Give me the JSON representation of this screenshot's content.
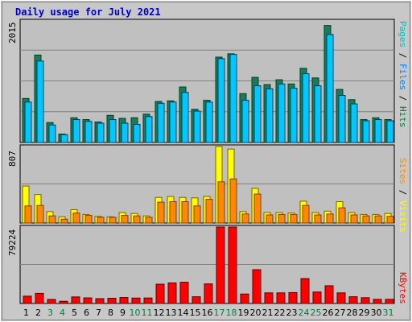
{
  "title": "Daily usage for July 2021",
  "colors": {
    "background": "#c8c8c8",
    "plot_bg": "#c0c0c0",
    "pages": "#00c0c0",
    "files": "#0080ff",
    "hits": "#008040",
    "hits_bar": "#1a7a5c",
    "files_bar": "#00c8ff",
    "visits": "#ffff00",
    "sites": "#ff8800",
    "kbytes": "#ff0000",
    "weekend": "#008040",
    "weekday": "#000000"
  },
  "chart_data": [
    {
      "type": "bar",
      "title": "Daily usage for July 2021",
      "ymax_label": "2015",
      "ylim": [
        0,
        2015
      ],
      "x": [
        "1",
        "2",
        "3",
        "4",
        "5",
        "6",
        "7",
        "8",
        "9",
        "10",
        "11",
        "12",
        "13",
        "14",
        "15",
        "16",
        "17",
        "18",
        "19",
        "20",
        "21",
        "22",
        "23",
        "24",
        "25",
        "26",
        "27",
        "28",
        "29",
        "30",
        "31"
      ],
      "weekend_days": [
        "3",
        "4",
        "10",
        "11",
        "17",
        "18",
        "24",
        "25",
        "31"
      ],
      "legend": [
        {
          "text": "Pages",
          "color": "#00c0c0"
        },
        {
          "text": " / ",
          "color": "#000000"
        },
        {
          "text": "Files",
          "color": "#0080ff"
        },
        {
          "text": " / ",
          "color": "#000000"
        },
        {
          "text": "Hits",
          "color": "#008040"
        }
      ],
      "series": [
        {
          "name": "Hits",
          "values": [
            730,
            1450,
            330,
            140,
            410,
            380,
            340,
            450,
            400,
            410,
            470,
            680,
            690,
            920,
            550,
            700,
            1415,
            1470,
            810,
            1080,
            960,
            1040,
            970,
            1230,
            1070,
            1940,
            880,
            710,
            380,
            410,
            380
          ]
        },
        {
          "name": "Files",
          "values": [
            670,
            1350,
            290,
            130,
            380,
            350,
            320,
            380,
            320,
            300,
            430,
            650,
            670,
            830,
            520,
            670,
            1390,
            1460,
            700,
            940,
            890,
            970,
            900,
            1140,
            940,
            1790,
            780,
            640,
            360,
            380,
            360
          ]
        }
      ]
    },
    {
      "type": "bar",
      "ymax_label": "807",
      "ylim": [
        0,
        807
      ],
      "legend": [
        {
          "text": "Sites",
          "color": "#ff8800"
        },
        {
          "text": " / ",
          "color": "#000000"
        },
        {
          "text": "Visits",
          "color": "#ffff00"
        }
      ],
      "series": [
        {
          "name": "Visits",
          "values": [
            390,
            300,
            120,
            65,
            140,
            90,
            70,
            65,
            110,
            100,
            75,
            270,
            280,
            270,
            265,
            280,
            807,
            780,
            120,
            365,
            110,
            110,
            105,
            230,
            110,
            125,
            225,
            110,
            90,
            90,
            100
          ]
        },
        {
          "name": "Sites",
          "values": [
            180,
            185,
            75,
            40,
            105,
            80,
            60,
            60,
            80,
            75,
            60,
            220,
            225,
            225,
            180,
            250,
            435,
            465,
            95,
            305,
            85,
            90,
            90,
            185,
            85,
            95,
            160,
            85,
            75,
            75,
            70
          ]
        }
      ]
    },
    {
      "type": "bar",
      "ymax_label": "79224",
      "ylim": [
        0,
        79224
      ],
      "legend": [
        {
          "text": "KBytes",
          "color": "#ff0000"
        }
      ],
      "series": [
        {
          "name": "KBytes",
          "values": [
            7600,
            10500,
            4200,
            2300,
            6800,
            5800,
            5000,
            5400,
            6200,
            5600,
            5700,
            20000,
            21300,
            22000,
            7000,
            20300,
            79224,
            79224,
            9800,
            35000,
            11000,
            11000,
            11300,
            25800,
            11900,
            18400,
            11000,
            7000,
            6000,
            4300,
            4300
          ]
        }
      ]
    }
  ]
}
